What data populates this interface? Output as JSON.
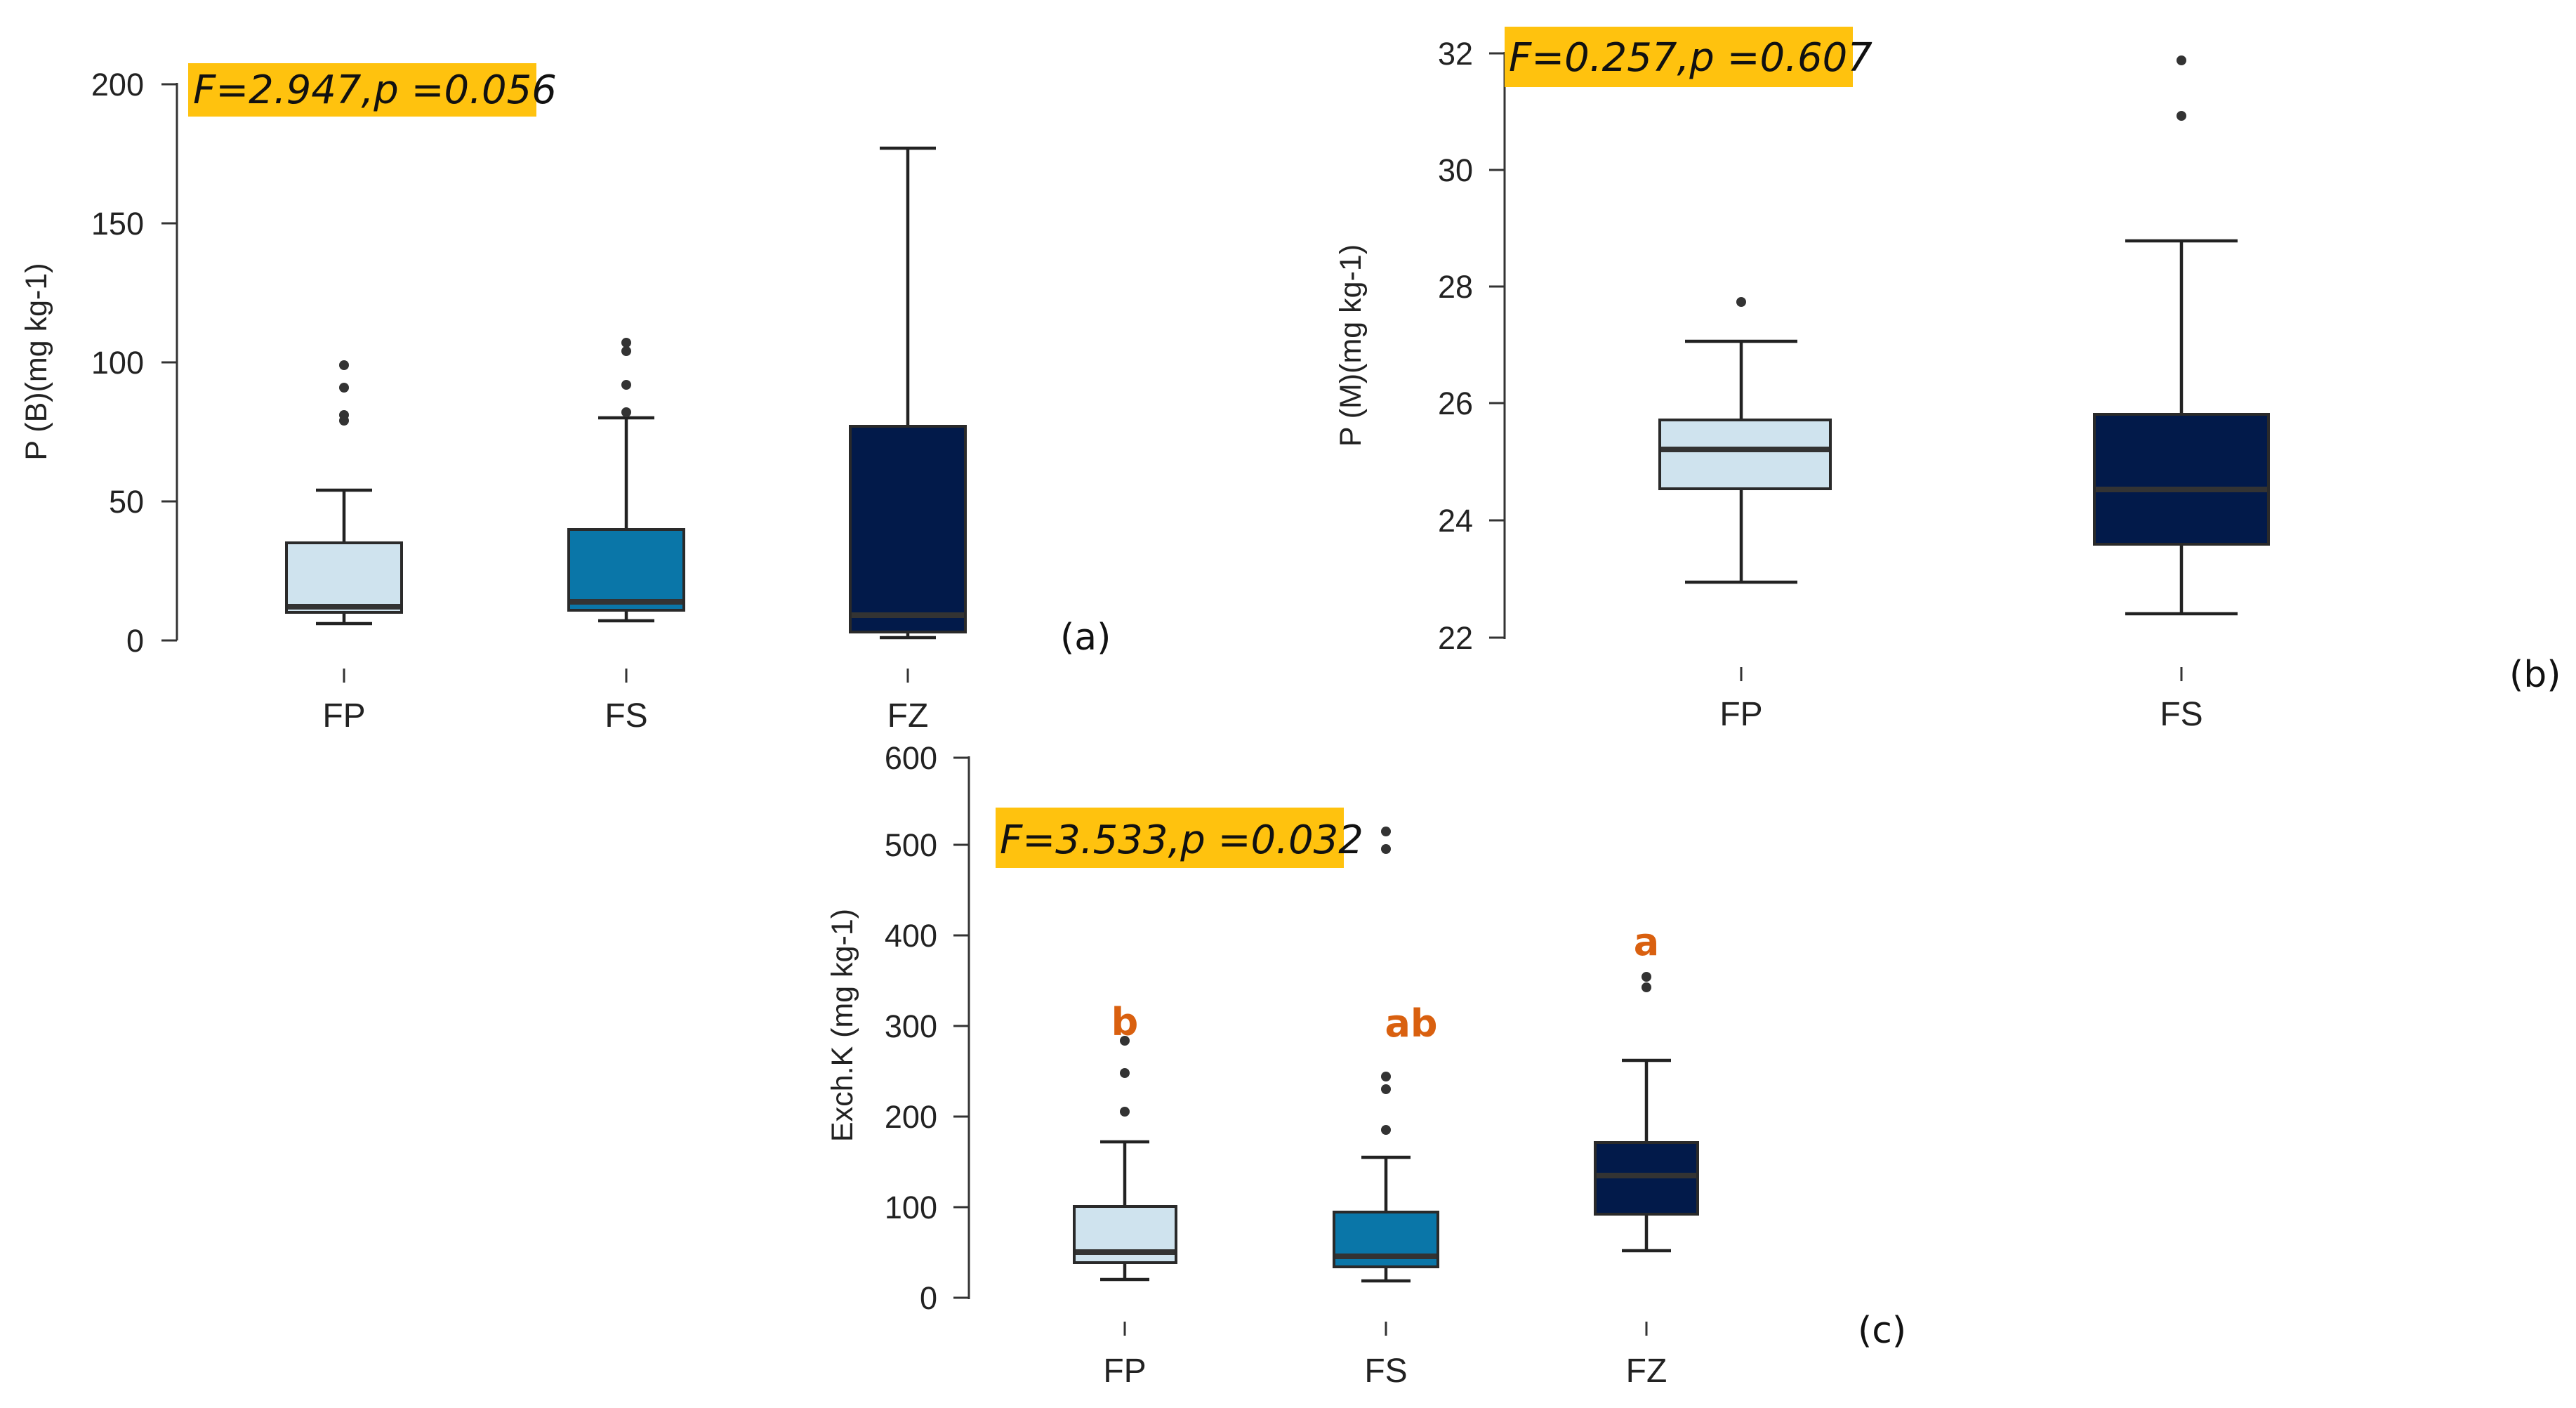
{
  "colors": {
    "light_blue": "#cfe3ee",
    "mid_blue": "#0a76a8",
    "navy": "#021a4a",
    "highlight": "#ffc20e",
    "letter": "#d9600f",
    "outlier": "#333333"
  },
  "chart_data": [
    {
      "type": "box",
      "panel_label": "(a)",
      "ylabel": "P (B)(mg kg-1)",
      "ylim": [
        0,
        200
      ],
      "yticks": [
        "0",
        "50",
        "100",
        "150",
        "200"
      ],
      "stat_annotation": "F=2.947,p =0.056",
      "categories": [
        "FP",
        "FS",
        "FZ"
      ],
      "boxes": [
        {
          "category": "FP",
          "whisker_low": 6,
          "q1": 10,
          "median": 12,
          "q3": 35,
          "whisker_high": 54,
          "outliers": [
            79,
            81,
            91,
            99
          ],
          "fill": "light_blue",
          "letter": ""
        },
        {
          "category": "FS",
          "whisker_low": 7,
          "q1": 11,
          "median": 14,
          "q3": 40,
          "whisker_high": 80,
          "outliers": [
            82,
            92,
            104,
            107
          ],
          "fill": "mid_blue",
          "letter": ""
        },
        {
          "category": "FZ",
          "whisker_low": 1,
          "q1": 3,
          "median": 9,
          "q3": 77,
          "whisker_high": 177,
          "outliers": [],
          "fill": "navy",
          "letter": ""
        }
      ]
    },
    {
      "type": "box",
      "panel_label": "(b)",
      "ylabel": "P (M)(mg kg-1)",
      "ylim": [
        22,
        32
      ],
      "yticks": [
        "22",
        "24",
        "26",
        "28",
        "30",
        "32"
      ],
      "stat_annotation": "F=0.257,p =0.607",
      "categories": [
        "FP",
        "FS"
      ],
      "boxes": [
        {
          "category": "FP",
          "whisker_low": 22.9,
          "q1": 24.55,
          "median": 25.2,
          "q3": 25.75,
          "whisker_high": 27.1,
          "outliers": [
            27.75
          ],
          "fill": "light_blue",
          "letter": ""
        },
        {
          "category": "FS",
          "whisker_low": 22.35,
          "q1": 23.55,
          "median": 24.5,
          "q3": 25.85,
          "whisker_high": 28.8,
          "outliers": [
            30.95,
            31.9
          ],
          "fill": "navy",
          "letter": ""
        }
      ]
    },
    {
      "type": "box",
      "panel_label": "(c)",
      "ylabel": "Exch.K (mg kg-1)",
      "ylim": [
        0,
        600
      ],
      "yticks": [
        "0",
        "100",
        "200",
        "300",
        "400",
        "500",
        "600"
      ],
      "stat_annotation": "F=3.533,p =0.032",
      "categories": [
        "FP",
        "FS",
        "FZ"
      ],
      "boxes": [
        {
          "category": "FP",
          "whisker_low": 20,
          "q1": 40,
          "median": 52,
          "q3": 101,
          "whisker_high": 172,
          "outliers": [
            207,
            248,
            285
          ],
          "fill": "light_blue",
          "letter": "b"
        },
        {
          "category": "FS",
          "whisker_low": 20,
          "q1": 37,
          "median": 47,
          "q3": 96,
          "whisker_high": 155,
          "outliers": [
            185,
            230,
            245,
            500,
            515
          ],
          "fill": "mid_blue",
          "letter": "ab"
        },
        {
          "category": "FZ",
          "whisker_low": 52,
          "q1": 93,
          "median": 136,
          "q3": 172,
          "whisker_high": 262,
          "outliers": [
            343,
            355
          ],
          "fill": "navy",
          "letter": "a"
        }
      ]
    }
  ]
}
